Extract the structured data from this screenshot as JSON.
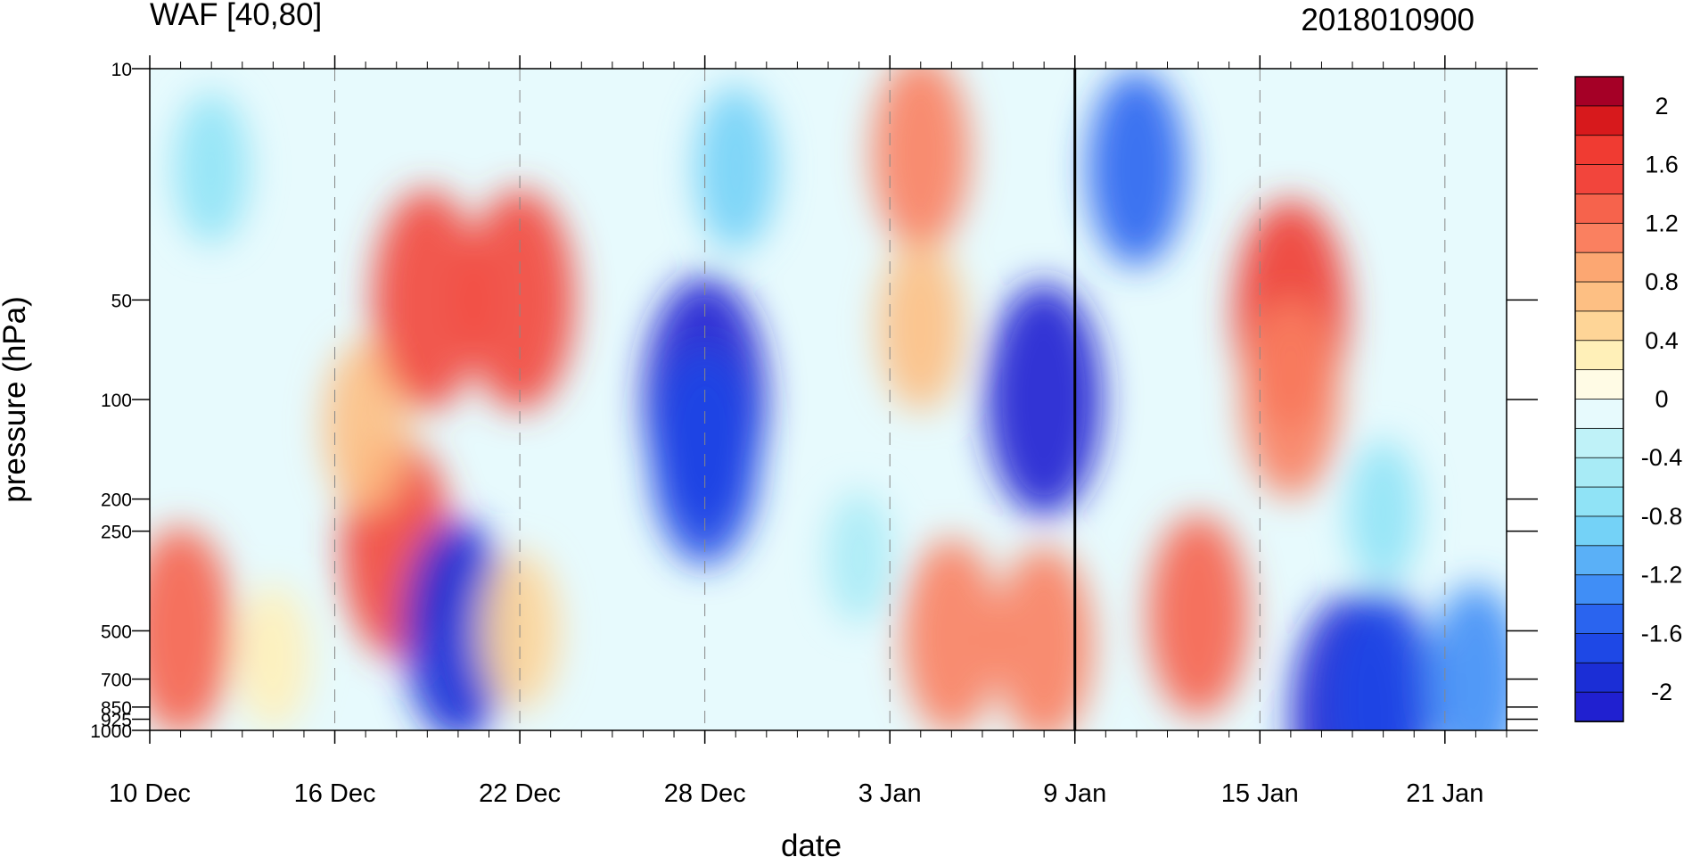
{
  "chart_data": {
    "type": "heatmap",
    "title": "WAF [40,80]",
    "subtitle": "2018010900",
    "xlabel": "date",
    "ylabel": "pressure (hPa)",
    "x_tick_labels": [
      "10 Dec",
      "16 Dec",
      "22 Dec",
      "28 Dec",
      "3 Jan",
      "9 Jan",
      "15 Jan",
      "21 Jan"
    ],
    "x_tick_dates": [
      "2017-12-10",
      "2017-12-16",
      "2017-12-22",
      "2017-12-28",
      "2018-01-03",
      "2018-01-09",
      "2018-01-15",
      "2018-01-21"
    ],
    "x_range": [
      "2017-12-10",
      "2018-01-23"
    ],
    "y_scale": "log",
    "y_tick_labels": [
      "10",
      "50",
      "100",
      "200",
      "250",
      "500",
      "700",
      "850",
      "925",
      "1000"
    ],
    "y_tick_values": [
      10,
      50,
      100,
      200,
      250,
      500,
      700,
      850,
      925,
      1000
    ],
    "y_range": [
      1000,
      10
    ],
    "reference_date": "2018-01-09",
    "colorbar": {
      "labels": [
        "2",
        "1.6",
        "1.2",
        "0.8",
        "0.4",
        "0",
        "-0.4",
        "-0.8",
        "-1.2",
        "-1.6",
        "-2"
      ],
      "label_values": [
        2,
        1.6,
        1.2,
        0.8,
        0.4,
        0,
        -0.4,
        -0.8,
        -1.2,
        -1.6,
        -2
      ],
      "levels": [
        2.2,
        2.0,
        1.8,
        1.6,
        1.4,
        1.2,
        1.0,
        0.8,
        0.6,
        0.4,
        0.2,
        0,
        -0.2,
        -0.4,
        -0.6,
        -0.8,
        -1.0,
        -1.2,
        -1.4,
        -1.6,
        -1.8,
        -2.0
      ],
      "colors": [
        "#a50026",
        "#d7191c",
        "#f03b32",
        "#f2453c",
        "#f6634c",
        "#fa8060",
        "#fca772",
        "#fdbf83",
        "#fed597",
        "#fff0b8",
        "#fffbe5",
        "#e7fafd",
        "#bff2f8",
        "#a8ebf6",
        "#90e3f6",
        "#74d2f7",
        "#5ab0f7",
        "#408ef6",
        "#2a64ef",
        "#1e48e6",
        "#1b2ed6",
        "#2020d0"
      ],
      "position": "right"
    },
    "features": [
      {
        "date": "2017-12-11",
        "pressure": 500,
        "value": 1.5
      },
      {
        "date": "2017-12-12",
        "pressure": 20,
        "value": -0.6
      },
      {
        "date": "2017-12-18",
        "pressure": 280,
        "value": 1.7
      },
      {
        "date": "2017-12-17",
        "pressure": 120,
        "value": 0.9
      },
      {
        "date": "2017-12-19",
        "pressure": 50,
        "value": 1.7
      },
      {
        "date": "2017-12-22",
        "pressure": 50,
        "value": 1.7
      },
      {
        "date": "2017-12-20",
        "pressure": 500,
        "value": -1.7
      },
      {
        "date": "2017-12-14",
        "pressure": 600,
        "value": 0.5
      },
      {
        "date": "2017-12-22",
        "pressure": 500,
        "value": 0.7
      },
      {
        "date": "2017-12-28",
        "pressure": 100,
        "value": -2.1
      },
      {
        "date": "2017-12-28",
        "pressure": 150,
        "value": -1.6
      },
      {
        "date": "2017-12-29",
        "pressure": 20,
        "value": -0.8
      },
      {
        "date": "2018-01-02",
        "pressure": 300,
        "value": -0.3
      },
      {
        "date": "2018-01-04",
        "pressure": 18,
        "value": 1.3
      },
      {
        "date": "2018-01-04",
        "pressure": 60,
        "value": 0.9
      },
      {
        "date": "2018-01-05",
        "pressure": 520,
        "value": 1.3
      },
      {
        "date": "2018-01-08",
        "pressure": 100,
        "value": -1.9
      },
      {
        "date": "2018-01-08",
        "pressure": 550,
        "value": 1.3
      },
      {
        "date": "2018-01-11",
        "pressure": 20,
        "value": -1.3
      },
      {
        "date": "2018-01-13",
        "pressure": 450,
        "value": 1.4
      },
      {
        "date": "2018-01-16",
        "pressure": 55,
        "value": 1.8
      },
      {
        "date": "2018-01-16",
        "pressure": 100,
        "value": 1.3
      },
      {
        "date": "2018-01-19",
        "pressure": 220,
        "value": -0.5
      },
      {
        "date": "2018-01-18",
        "pressure": 920,
        "value": -2.1
      },
      {
        "date": "2018-01-19",
        "pressure": 800,
        "value": -1.6
      },
      {
        "date": "2018-01-22",
        "pressure": 700,
        "value": -1.2
      }
    ]
  }
}
